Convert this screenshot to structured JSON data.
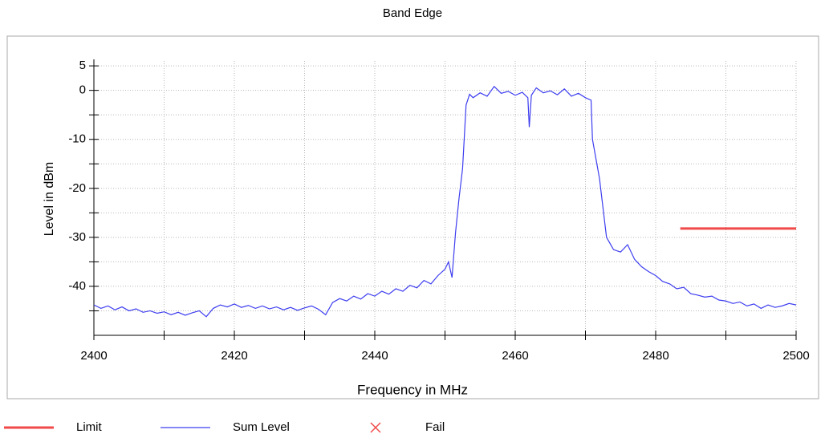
{
  "chart_data": {
    "type": "line",
    "title": "Band Edge",
    "x_label": "Frequency in MHz",
    "y_label": "Level in dBm",
    "xlim": [
      2400,
      2500
    ],
    "xticks": [
      2400,
      2420,
      2440,
      2460,
      2480,
      2500
    ],
    "minor_xticks": [
      2410,
      2430,
      2450,
      2470,
      2490
    ],
    "ylim": [
      -50,
      6
    ],
    "yticks": [
      5,
      0,
      -10,
      -20,
      -30,
      -40
    ],
    "minor_yticks": [
      -5,
      -15,
      -25,
      -35,
      -45
    ],
    "grid": true,
    "series": [
      {
        "name": "Limit",
        "color": "#f04a4a",
        "x": [
          2483.5,
          2500
        ],
        "values": [
          -28.2,
          -28.2
        ]
      },
      {
        "name": "Sum Level",
        "color": "#3d3df0",
        "x": [
          2400,
          2401,
          2402,
          2403,
          2404,
          2405,
          2406,
          2407,
          2408,
          2409,
          2410,
          2411,
          2412,
          2413,
          2414,
          2415,
          2416,
          2417,
          2418,
          2419,
          2420,
          2421,
          2422,
          2423,
          2424,
          2425,
          2426,
          2427,
          2428,
          2429,
          2430,
          2431,
          2432,
          2433,
          2434,
          2435,
          2436,
          2437,
          2438,
          2439,
          2440,
          2441,
          2442,
          2443,
          2444,
          2445,
          2446,
          2447,
          2448,
          2449,
          2450,
          2450.5,
          2451,
          2451.5,
          2452,
          2452.5,
          2453,
          2453.5,
          2454,
          2455,
          2456,
          2457,
          2458,
          2459,
          2460,
          2461,
          2461.8,
          2462,
          2462.3,
          2463,
          2464,
          2465,
          2466,
          2467,
          2468,
          2469,
          2470,
          2470.8,
          2471,
          2471.5,
          2472,
          2472.5,
          2473,
          2474,
          2475,
          2476,
          2477,
          2478,
          2479,
          2480,
          2481,
          2482,
          2483,
          2484,
          2485,
          2486,
          2487,
          2488,
          2489,
          2490,
          2491,
          2492,
          2493,
          2494,
          2495,
          2496,
          2497,
          2498,
          2499,
          2500
        ],
        "values": [
          -43.8,
          -44.5,
          -44.0,
          -44.8,
          -44.2,
          -45.0,
          -44.6,
          -45.3,
          -45.0,
          -45.5,
          -45.2,
          -45.8,
          -45.3,
          -45.9,
          -45.4,
          -45.0,
          -46.2,
          -44.5,
          -43.8,
          -44.2,
          -43.6,
          -44.3,
          -43.9,
          -44.5,
          -44.0,
          -44.6,
          -44.2,
          -44.8,
          -44.3,
          -44.9,
          -44.4,
          -44.0,
          -44.7,
          -45.8,
          -43.3,
          -42.5,
          -43.0,
          -42.0,
          -42.6,
          -41.5,
          -42.0,
          -41.0,
          -41.6,
          -40.5,
          -41.0,
          -39.8,
          -40.3,
          -38.8,
          -39.5,
          -37.8,
          -36.5,
          -35.0,
          -38.2,
          -29,
          -22,
          -16,
          -3,
          -0.8,
          -1.5,
          -0.5,
          -1.2,
          0.8,
          -0.6,
          -0.2,
          -1.0,
          -0.4,
          -1.5,
          -7.5,
          -1.0,
          0.5,
          -0.5,
          -0.1,
          -0.9,
          0.3,
          -1.2,
          -0.6,
          -1.5,
          -2.0,
          -10,
          -14,
          -18,
          -24,
          -30,
          -32.5,
          -33.0,
          -31.5,
          -34.5,
          -36.0,
          -37.0,
          -37.8,
          -39.0,
          -39.5,
          -40.5,
          -40.2,
          -41.5,
          -41.8,
          -42.2,
          -42.0,
          -42.8,
          -43.0,
          -43.5,
          -43.2,
          -44.0,
          -43.6,
          -44.5,
          -43.8,
          -44.3,
          -44.0,
          -43.5,
          -43.8
        ]
      },
      {
        "name": "Fail",
        "color": "#f04a4a",
        "marker": "x",
        "x": [],
        "values": []
      }
    ]
  }
}
